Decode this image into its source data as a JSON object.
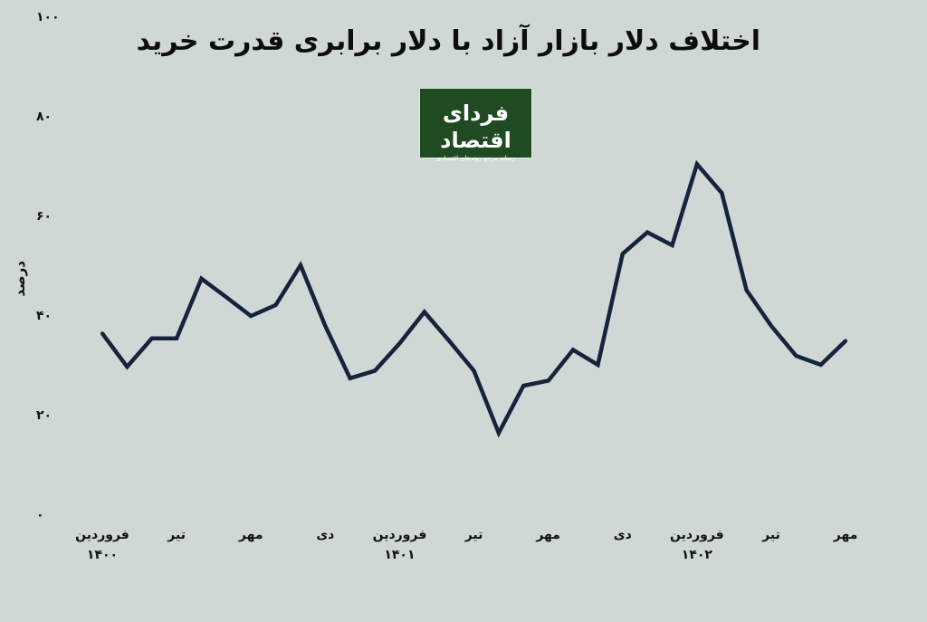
{
  "title": "اختلاف دلار بازار آزاد با دلار برابری قدرت خرید",
  "logo": {
    "name": "فردای اقتصاد",
    "subtitle": "رسانه مرجع روندهای اقتصادی"
  },
  "chart_data": {
    "type": "line",
    "ylabel": "درصد",
    "ylim": [
      0,
      100
    ],
    "yticks": [
      "۰",
      "۲۰",
      "۴۰",
      "۶۰",
      "۸۰",
      "۱۰۰"
    ],
    "x_labels": [
      {
        "top": "فروردین",
        "bottom": "۱۴۰۰"
      },
      {
        "top": "تیر",
        "bottom": ""
      },
      {
        "top": "مهر",
        "bottom": ""
      },
      {
        "top": "دی",
        "bottom": ""
      },
      {
        "top": "فروردین",
        "bottom": "۱۴۰۱"
      },
      {
        "top": "تیر",
        "bottom": ""
      },
      {
        "top": "مهر",
        "bottom": ""
      },
      {
        "top": "دی",
        "bottom": ""
      },
      {
        "top": "فروردین",
        "bottom": "۱۴۰۲"
      },
      {
        "top": "تیر",
        "bottom": ""
      },
      {
        "top": "مهر",
        "bottom": ""
      }
    ],
    "series": [
      {
        "color": "#16233c",
        "values": [
          36.5,
          29.8,
          35.5,
          35.5,
          47.5,
          43.8,
          40.0,
          42.2,
          50.2,
          38.0,
          27.5,
          29.0,
          34.5,
          40.8,
          35.0,
          29.0,
          16.5,
          26.0,
          27.0,
          33.2,
          30.2,
          52.5,
          56.8,
          54.2,
          70.5,
          64.7,
          45.2,
          38.0,
          32.0,
          30.2,
          35.0
        ]
      }
    ],
    "grid": false,
    "legend": "none"
  }
}
